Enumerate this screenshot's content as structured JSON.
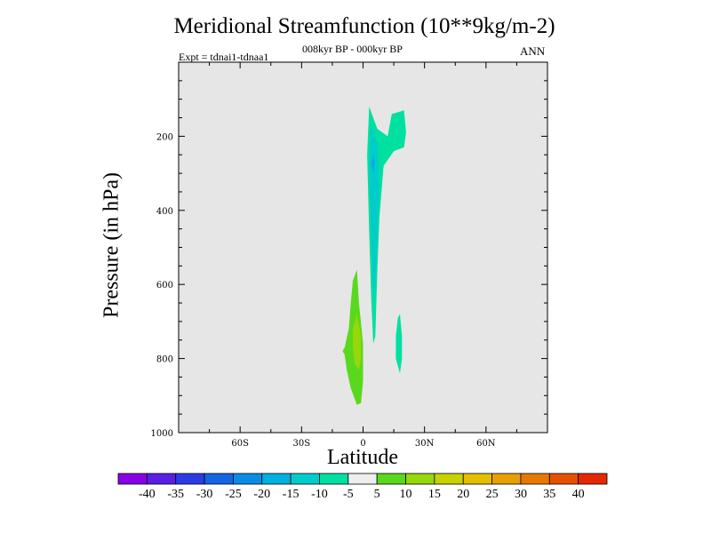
{
  "chart_data": {
    "type": "heatmap",
    "title": "Meridional Streamfunction (10**9kg/m-2)",
    "subtitle": "008kyr BP - 000kyr BP",
    "left_label": "Expt = tdnai1-tdnaa1",
    "right_label": "ANN",
    "xlabel": "Latitude",
    "ylabel": "Pressure (in hPa)",
    "xlim": [
      -90,
      90
    ],
    "ylim": [
      0,
      1000
    ],
    "y_inverted": true,
    "x_ticks": [
      {
        "value": -60,
        "label": "60S"
      },
      {
        "value": -30,
        "label": "30S"
      },
      {
        "value": 0,
        "label": "0"
      },
      {
        "value": 30,
        "label": "30N"
      },
      {
        "value": 60,
        "label": "60N"
      }
    ],
    "y_ticks": [
      {
        "value": 200,
        "label": "200"
      },
      {
        "value": 400,
        "label": "400"
      },
      {
        "value": 600,
        "label": "600"
      },
      {
        "value": 800,
        "label": "800"
      },
      {
        "value": 1000,
        "label": "1000"
      }
    ],
    "background_color": "#e6e6e6",
    "colorbar": {
      "labels": [
        "-40",
        "-35",
        "-30",
        "-25",
        "-20",
        "-15",
        "-10",
        "-5",
        "5",
        "10",
        "15",
        "20",
        "25",
        "30",
        "35",
        "40"
      ],
      "colors": [
        "#8a00e6",
        "#5a1ee6",
        "#2b3ce6",
        "#1464e6",
        "#0a8ce6",
        "#00b0e0",
        "#00cccc",
        "#00e0a0",
        "#eeeeee",
        "#5ad81e",
        "#96d80a",
        "#c8d200",
        "#e6be00",
        "#e6a000",
        "#e67800",
        "#e65000",
        "#e62800"
      ]
    },
    "regions": [
      {
        "name": "positive-low-lat-outer",
        "level": "5",
        "color": "#5ad81e",
        "points": [
          [
            -3,
            560
          ],
          [
            -2,
            650
          ],
          [
            0,
            760
          ],
          [
            0,
            860
          ],
          [
            -1,
            920
          ],
          [
            -3,
            925
          ],
          [
            -6,
            880
          ],
          [
            -8,
            830
          ],
          [
            -9,
            790
          ],
          [
            -10,
            780
          ],
          [
            -9,
            770
          ],
          [
            -7,
            720
          ],
          [
            -6,
            650
          ],
          [
            -5,
            590
          ]
        ]
      },
      {
        "name": "positive-low-lat-core",
        "level": "10",
        "color": "#96d80a",
        "points": [
          [
            -3,
            680
          ],
          [
            -1,
            740
          ],
          [
            -1,
            800
          ],
          [
            -2,
            830
          ],
          [
            -4,
            815
          ],
          [
            -5,
            770
          ],
          [
            -5,
            720
          ]
        ]
      },
      {
        "name": "negative-upper-column",
        "level": "-5",
        "color": "#00e0a0",
        "points": [
          [
            3,
            120
          ],
          [
            7,
            180
          ],
          [
            12,
            200
          ],
          [
            14,
            140
          ],
          [
            20,
            130
          ],
          [
            21,
            190
          ],
          [
            20,
            230
          ],
          [
            15,
            240
          ],
          [
            10,
            280
          ],
          [
            8,
            420
          ],
          [
            7,
            560
          ],
          [
            6,
            740
          ],
          [
            5,
            760
          ],
          [
            4,
            640
          ],
          [
            3,
            460
          ],
          [
            2,
            250
          ]
        ]
      },
      {
        "name": "negative-upper-core",
        "level": "-10",
        "color": "#00cccc",
        "points": [
          [
            4,
            170
          ],
          [
            7,
            220
          ],
          [
            8,
            320
          ],
          [
            7,
            460
          ],
          [
            6,
            600
          ],
          [
            5,
            640
          ],
          [
            4,
            460
          ],
          [
            3,
            280
          ]
        ]
      },
      {
        "name": "negative-upper-inner",
        "level": "-15",
        "color": "#00b0e0",
        "points": [
          [
            5,
            250
          ],
          [
            6,
            270
          ],
          [
            5,
            300
          ],
          [
            4,
            270
          ]
        ]
      },
      {
        "name": "negative-lower-patch",
        "level": "-5",
        "color": "#00e0a0",
        "points": [
          [
            17,
            690
          ],
          [
            18,
            680
          ],
          [
            19,
            740
          ],
          [
            19,
            800
          ],
          [
            18,
            840
          ],
          [
            16,
            800
          ],
          [
            16,
            740
          ]
        ]
      }
    ]
  }
}
